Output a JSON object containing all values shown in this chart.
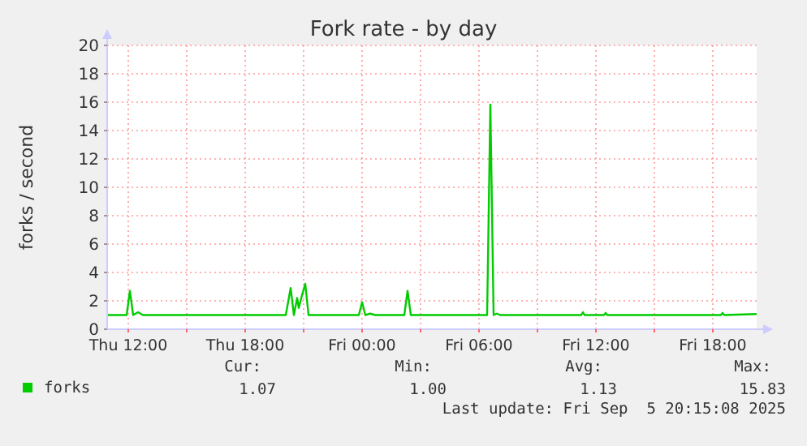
{
  "chart_data": {
    "type": "line",
    "title": "Fork rate - by day",
    "ylabel": "forks / second",
    "xlim": [
      "2025-09-04T10:55",
      "2025-09-05T20:15"
    ],
    "xticks": [
      {
        "value": "2025-09-04T12:00",
        "label": "Thu 12:00"
      },
      {
        "value": "2025-09-04T15:00",
        "label": null
      },
      {
        "value": "2025-09-04T18:00",
        "label": "Thu 18:00"
      },
      {
        "value": "2025-09-04T21:00",
        "label": null
      },
      {
        "value": "2025-09-05T00:00",
        "label": "Fri 00:00"
      },
      {
        "value": "2025-09-05T03:00",
        "label": null
      },
      {
        "value": "2025-09-05T06:00",
        "label": "Fri 06:00"
      },
      {
        "value": "2025-09-05T09:00",
        "label": null
      },
      {
        "value": "2025-09-05T12:00",
        "label": "Fri 12:00"
      },
      {
        "value": "2025-09-05T15:00",
        "label": null
      },
      {
        "value": "2025-09-05T18:00",
        "label": "Fri 18:00"
      }
    ],
    "ylim": [
      0,
      20
    ],
    "yticks": [
      0,
      2,
      4,
      6,
      8,
      10,
      12,
      14,
      16,
      18,
      20
    ],
    "grid": true,
    "legend": "bottom left",
    "x": [
      "2025-09-04T10:55",
      "2025-09-04T11:55",
      "2025-09-04T12:05",
      "2025-09-04T12:15",
      "2025-09-04T12:30",
      "2025-09-04T12:45",
      "2025-09-04T15:25",
      "2025-09-04T17:55",
      "2025-09-04T20:05",
      "2025-09-04T20:20",
      "2025-09-04T20:30",
      "2025-09-04T20:40",
      "2025-09-04T20:45",
      "2025-09-04T20:55",
      "2025-09-04T21:05",
      "2025-09-04T21:15",
      "2025-09-04T22:05",
      "2025-09-04T23:50",
      "2025-09-05T00:00",
      "2025-09-05T00:10",
      "2025-09-05T00:25",
      "2025-09-05T00:40",
      "2025-09-05T02:10",
      "2025-09-05T02:20",
      "2025-09-05T02:30",
      "2025-09-05T06:25",
      "2025-09-05T06:35",
      "2025-09-05T06:45",
      "2025-09-05T06:55",
      "2025-09-05T07:05",
      "2025-09-05T11:15",
      "2025-09-05T11:20",
      "2025-09-05T11:25",
      "2025-09-05T12:25",
      "2025-09-05T12:30",
      "2025-09-05T12:35",
      "2025-09-05T18:25",
      "2025-09-05T18:30",
      "2025-09-05T18:35",
      "2025-09-05T20:15"
    ],
    "series": [
      {
        "name": "forks",
        "color": "#00cc00",
        "values": [
          1.0,
          1.0,
          2.7,
          1.0,
          1.2,
          1.0,
          1.0,
          1.0,
          1.0,
          2.9,
          1.0,
          2.2,
          1.5,
          2.4,
          3.2,
          1.0,
          1.0,
          1.0,
          1.9,
          1.0,
          1.1,
          1.0,
          1.0,
          2.7,
          1.0,
          1.0,
          15.83,
          1.0,
          1.1,
          1.0,
          1.0,
          1.2,
          1.0,
          1.0,
          1.15,
          1.0,
          1.0,
          1.15,
          1.0,
          1.07
        ]
      }
    ],
    "annotations": [
      "Cur:",
      "Min:",
      "Avg:",
      "Max:",
      "1.07",
      "1.00",
      "1.13",
      "15.83",
      "Last update: Fri Sep  5 20:15:08 2025"
    ]
  }
}
